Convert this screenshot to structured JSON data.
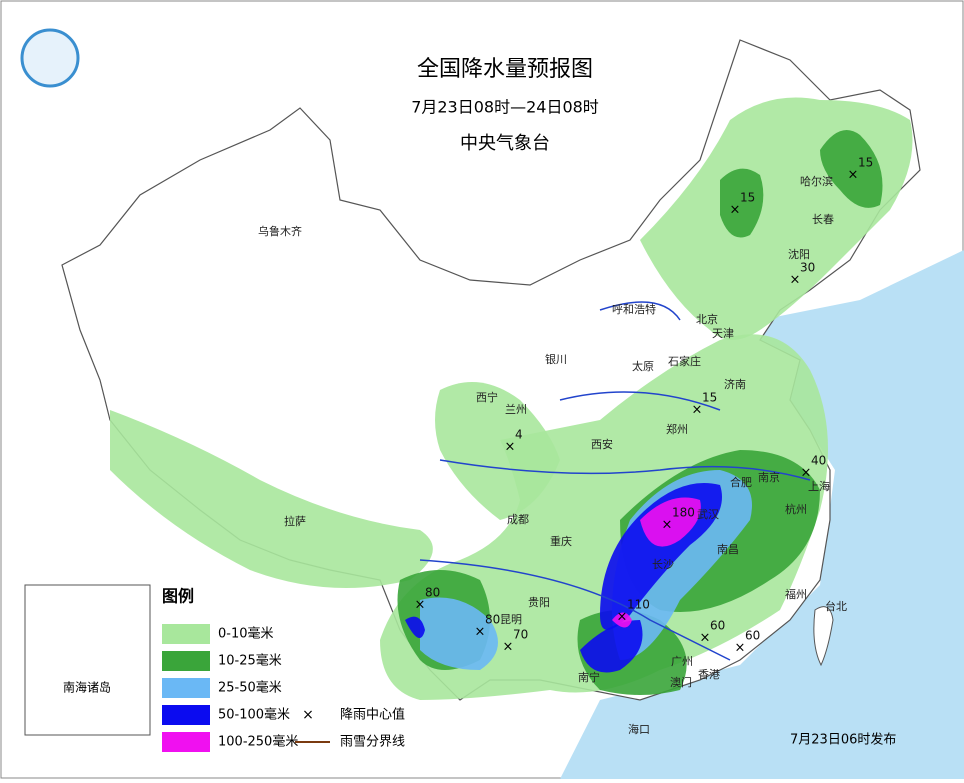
{
  "header": {
    "title": "全国降水量预报图",
    "period": "7月23日08时—24日08时",
    "issuer": "中央气象台"
  },
  "legend": {
    "title": "图例",
    "items": [
      {
        "label": "0-10毫米",
        "color": "#a8e79c"
      },
      {
        "label": "10-25毫米",
        "color": "#3aa53a"
      },
      {
        "label": "25-50毫米",
        "color": "#6ab8f5"
      },
      {
        "label": "50-100毫米",
        "color": "#0b0bf0"
      },
      {
        "label": "100-250毫米",
        "color": "#f010f0"
      }
    ],
    "symbols": [
      {
        "label": "降雨中心值"
      },
      {
        "label": "雨雪分界线"
      }
    ]
  },
  "cities": [
    "乌鲁木齐",
    "呼和浩特",
    "哈尔滨",
    "长春",
    "沈阳",
    "北京",
    "天津",
    "石家庄",
    "太原",
    "济南",
    "银川",
    "西宁",
    "兰州",
    "郑州",
    "西安",
    "合肥",
    "南京",
    "上海",
    "杭州",
    "武汉",
    "成都",
    "重庆",
    "南昌",
    "长沙",
    "福州",
    "台北",
    "贵阳",
    "昆明",
    "南宁",
    "广州",
    "香港",
    "澳门",
    "海口",
    "拉萨"
  ],
  "rain_centers": [
    15,
    15,
    30,
    15,
    4,
    40,
    180,
    110,
    80,
    80,
    70,
    60,
    60
  ],
  "inset": {
    "label": "南海诸岛"
  },
  "footer": {
    "issued": "7月23日06时发布"
  }
}
